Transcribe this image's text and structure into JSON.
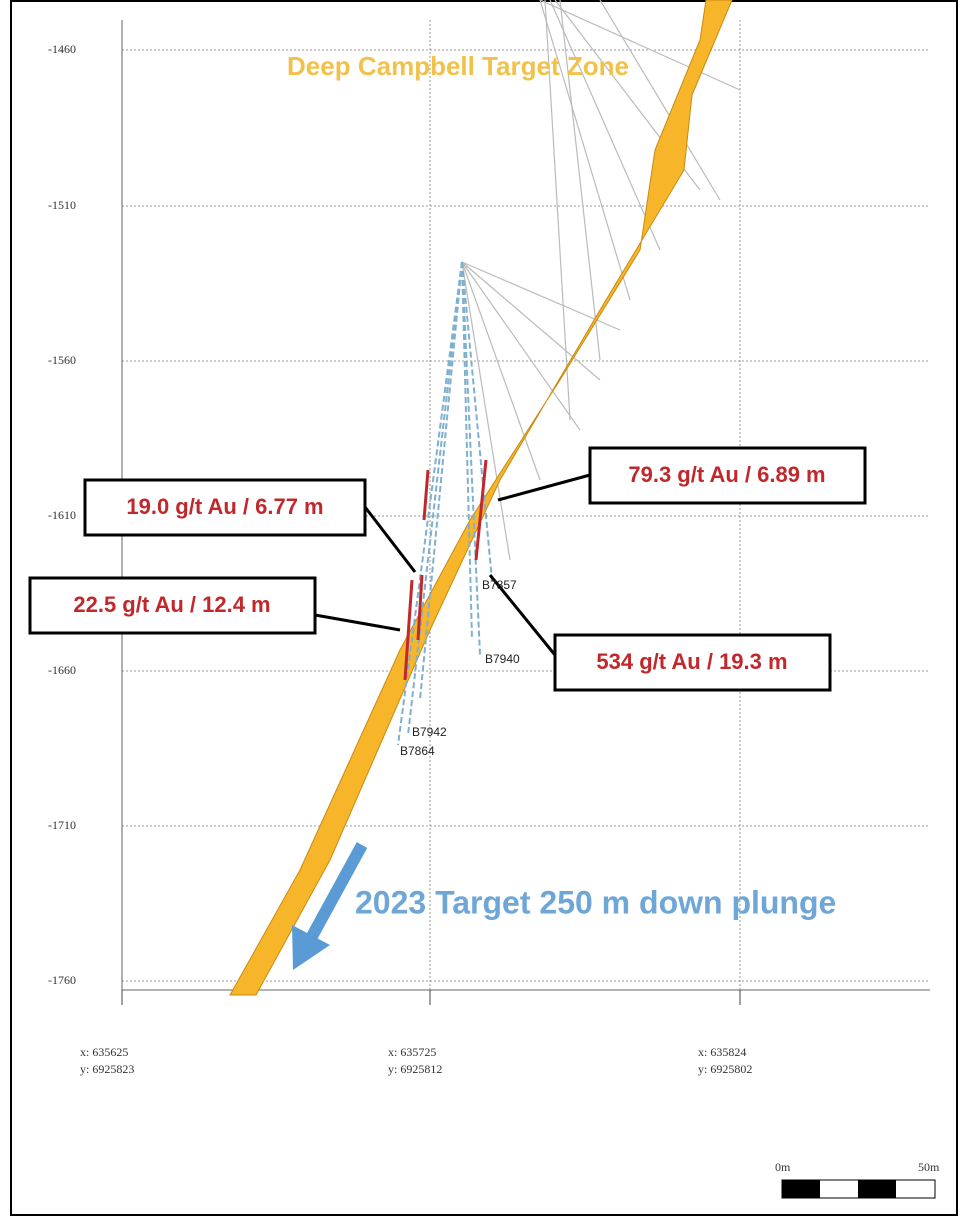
{
  "header": {
    "title": "Deep Campbell Target Zone"
  },
  "y_axis": {
    "ticks": [
      "-1460",
      "-1510",
      "-1560",
      "-1610",
      "-1660",
      "-1710",
      "-1760"
    ]
  },
  "x_axis": {
    "ticks": [
      {
        "x": "x: 635625",
        "y": "y: 6925823"
      },
      {
        "x": "x: 635725",
        "y": "y: 6925812"
      },
      {
        "x": "x: 635824",
        "y": "y: 6925802"
      }
    ]
  },
  "callouts": [
    "19.0 g/t Au / 6.77 m",
    "22.5 g/t Au / 12.4 m",
    "79.3 g/t Au / 6.89 m",
    "534 g/t Au / 19.3 m"
  ],
  "holes": [
    "B7857",
    "B7940",
    "B7942",
    "B7864"
  ],
  "target": "2023 Target 250 m down plunge",
  "scale": {
    "start": "0m",
    "end": "50m"
  }
}
